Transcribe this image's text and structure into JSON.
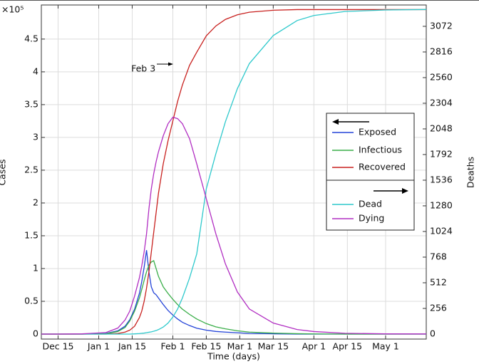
{
  "chart_data": {
    "type": "line",
    "y_multiplier": "×10⁵",
    "xlabel": "Time (days)",
    "ylabel": "Cases",
    "y2label": "Deaths",
    "annotation": {
      "text": "Feb 3",
      "x": 50,
      "y": 4.04
    },
    "x": [
      -7,
      0,
      10,
      20,
      25,
      28,
      30,
      32,
      34,
      35,
      36,
      37,
      38,
      39,
      40,
      41,
      42,
      44,
      46,
      48,
      50,
      52,
      55,
      58,
      62,
      66,
      70,
      75,
      80,
      90,
      100,
      107,
      120,
      137,
      154
    ],
    "xlim": [
      -7,
      154
    ],
    "xticks": [
      {
        "value": 0,
        "label": "Dec 15"
      },
      {
        "value": 17,
        "label": "Jan 1"
      },
      {
        "value": 31,
        "label": "Jan 15"
      },
      {
        "value": 48,
        "label": "Feb 1"
      },
      {
        "value": 62,
        "label": "Feb 15"
      },
      {
        "value": 76,
        "label": "Mar 1"
      },
      {
        "value": 90,
        "label": "Mar 15"
      },
      {
        "value": 107,
        "label": "Apr 1"
      },
      {
        "value": 121,
        "label": "Apr 15"
      },
      {
        "value": 137,
        "label": "May 1"
      }
    ],
    "ylim": [
      -0.076,
      5.02
    ],
    "yticks": [
      0,
      0.5,
      1,
      1.5,
      2,
      2.5,
      3,
      3.5,
      4,
      4.5
    ],
    "y2lim": [
      -50,
      3285
    ],
    "y2ticks": [
      0,
      256,
      512,
      768,
      1024,
      1280,
      1536,
      1792,
      2048,
      2304,
      2560,
      2816,
      3072
    ],
    "grid": true,
    "series": [
      {
        "name": "Exposed",
        "color": "#2343d8",
        "values": [
          0,
          0,
          0,
          0.01,
          0.05,
          0.12,
          0.22,
          0.38,
          0.62,
          0.8,
          1.02,
          1.28,
          0.95,
          0.72,
          0.63,
          0.6,
          0.55,
          0.45,
          0.36,
          0.29,
          0.23,
          0.18,
          0.13,
          0.09,
          0.06,
          0.04,
          0.03,
          0.02,
          0.01,
          0.005,
          0,
          0,
          0,
          0,
          0
        ]
      },
      {
        "name": "Infectious",
        "color": "#3aae49",
        "values": [
          0,
          0,
          0,
          0.005,
          0.04,
          0.1,
          0.2,
          0.35,
          0.55,
          0.68,
          0.82,
          0.95,
          1.05,
          1.1,
          1.12,
          1.0,
          0.88,
          0.72,
          0.62,
          0.53,
          0.45,
          0.38,
          0.3,
          0.23,
          0.16,
          0.11,
          0.08,
          0.05,
          0.03,
          0.015,
          0.006,
          0.003,
          0,
          0,
          0
        ]
      },
      {
        "name": "Recovered",
        "color": "#c8201e",
        "values": [
          0,
          0,
          0,
          0,
          0.01,
          0.03,
          0.06,
          0.12,
          0.25,
          0.35,
          0.5,
          0.7,
          0.95,
          1.25,
          1.55,
          1.85,
          2.15,
          2.6,
          2.95,
          3.25,
          3.55,
          3.8,
          4.1,
          4.3,
          4.55,
          4.7,
          4.8,
          4.87,
          4.91,
          4.94,
          4.95,
          4.95,
          4.95,
          4.95,
          4.95
        ]
      },
      {
        "name": "Dead",
        "color": "#2ec9cc",
        "axis": "y2",
        "values": [
          0,
          0,
          0,
          0,
          0,
          0,
          0,
          2,
          5,
          8,
          10,
          14,
          18,
          22,
          28,
          35,
          45,
          70,
          110,
          170,
          250,
          360,
          560,
          800,
          1450,
          1800,
          2120,
          2450,
          2700,
          2980,
          3130,
          3180,
          3220,
          3235,
          3240
        ]
      },
      {
        "name": "Dying",
        "color": "#b12ec2",
        "axis": "y2",
        "values": [
          0,
          0,
          2,
          15,
          60,
          140,
          230,
          380,
          560,
          680,
          820,
          1000,
          1250,
          1450,
          1600,
          1720,
          1820,
          1980,
          2100,
          2165,
          2150,
          2100,
          1950,
          1700,
          1350,
          1000,
          700,
          420,
          250,
          110,
          45,
          25,
          8,
          2,
          1
        ]
      }
    ]
  }
}
